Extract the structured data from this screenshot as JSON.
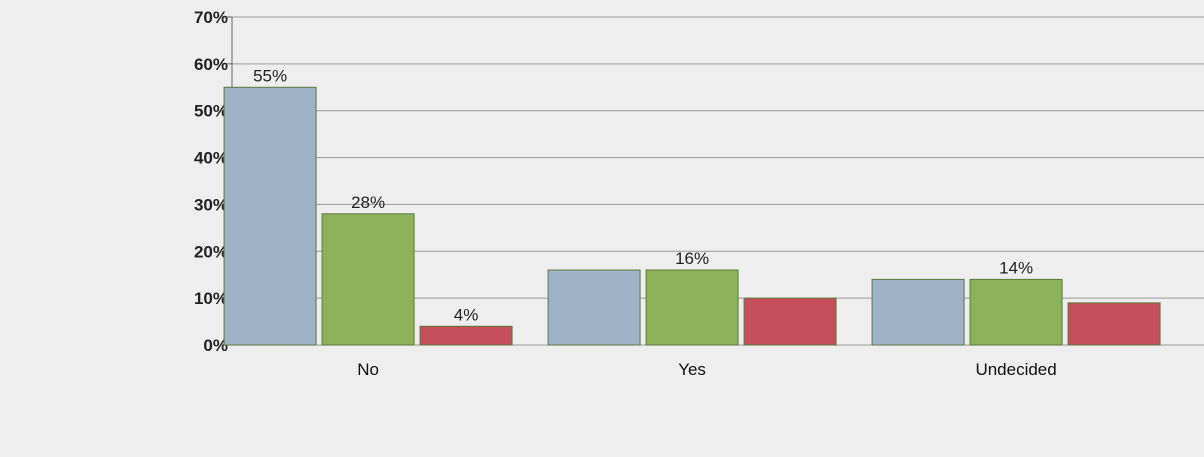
{
  "chart_data": {
    "type": "bar",
    "categories": [
      "No",
      "Yes",
      "Undecided"
    ],
    "series": [
      {
        "values": [
          55,
          16,
          14
        ],
        "color": "#9fb3c8"
      },
      {
        "values": [
          28,
          16,
          14
        ],
        "color": "#8cb35a"
      },
      {
        "values": [
          4,
          10,
          9
        ],
        "color": "#c44f5a"
      }
    ],
    "ylim": [
      0,
      70
    ],
    "y_ticks": [
      "0%",
      "10%",
      "20%",
      "30%",
      "40%",
      "50%",
      "60%",
      "70%"
    ],
    "grid": true,
    "value_labels": [
      "55%",
      "28%",
      "16%",
      "14%",
      "4%"
    ]
  }
}
